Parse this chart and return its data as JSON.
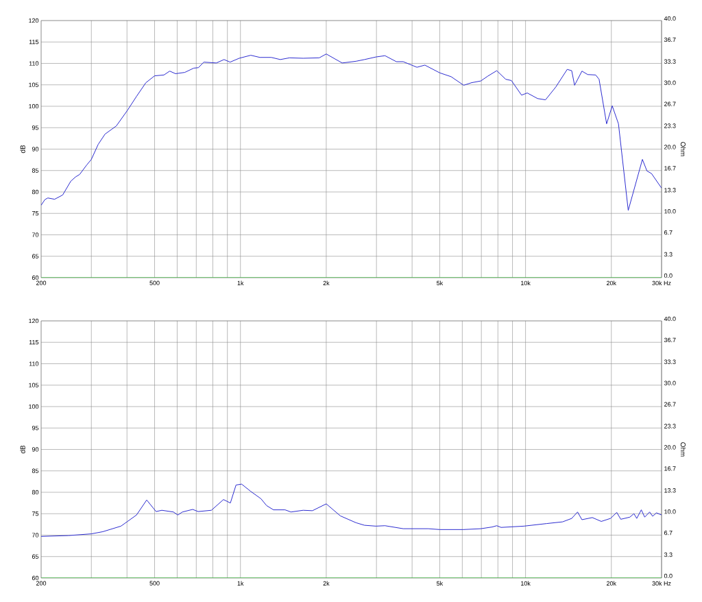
{
  "chart_data": [
    {
      "type": "line",
      "log": "x",
      "grid": true,
      "ylabel": "dB",
      "y2label": "Ohm",
      "xlim": [
        200,
        30000
      ],
      "xticks": [
        {
          "value": 200,
          "label": "200"
        },
        {
          "value": 300,
          "label": null
        },
        {
          "value": 400,
          "label": null
        },
        {
          "value": 500,
          "label": "500"
        },
        {
          "value": 600,
          "label": null
        },
        {
          "value": 700,
          "label": null
        },
        {
          "value": 800,
          "label": null
        },
        {
          "value": 900,
          "label": null
        },
        {
          "value": 1000,
          "label": "1k"
        },
        {
          "value": 2000,
          "label": "2k"
        },
        {
          "value": 3000,
          "label": null
        },
        {
          "value": 4000,
          "label": null
        },
        {
          "value": 5000,
          "label": "5k"
        },
        {
          "value": 6000,
          "label": null
        },
        {
          "value": 7000,
          "label": null
        },
        {
          "value": 8000,
          "label": null
        },
        {
          "value": 9000,
          "label": null
        },
        {
          "value": 10000,
          "label": "10k"
        },
        {
          "value": 20000,
          "label": "20k"
        },
        {
          "value": 30000,
          "label": "30k Hz"
        }
      ],
      "ylim": [
        60,
        120
      ],
      "yticks": [
        60,
        65,
        70,
        75,
        80,
        85,
        90,
        95,
        100,
        105,
        110,
        115,
        120
      ],
      "y2lim": [
        0,
        40
      ],
      "y2ticks": [
        {
          "value": 0,
          "label": "0.0"
        },
        {
          "value": 3.3,
          "label": "3.3"
        },
        {
          "value": 6.7,
          "label": "6.7"
        },
        {
          "value": 10,
          "label": "10.0"
        },
        {
          "value": 13.3,
          "label": "13.3"
        },
        {
          "value": 16.7,
          "label": "16.7"
        },
        {
          "value": 20,
          "label": "20.0"
        },
        {
          "value": 23.3,
          "label": "23.3"
        },
        {
          "value": 26.7,
          "label": "26.7"
        },
        {
          "value": 30,
          "label": "30.0"
        },
        {
          "value": 33.3,
          "label": "33.3"
        },
        {
          "value": 36.7,
          "label": "36.7"
        },
        {
          "value": 40,
          "label": "40.0"
        }
      ],
      "series": [
        {
          "color": "#2b2bd0",
          "x": [
            200,
            206,
            211,
            223,
            238,
            254,
            264,
            273,
            289,
            300,
            317,
            335,
            367,
            402,
            432,
            466,
            500,
            539,
            565,
            592,
            638,
            686,
            712,
            744,
            823,
            876,
            920,
            990,
            1087,
            1170,
            1283,
            1380,
            1486,
            1660,
            1890,
            2000,
            2274,
            2542,
            2723,
            2986,
            3214,
            3524,
            3724,
            4160,
            4436,
            5000,
            5483,
            6068,
            6471,
            6967,
            7362,
            7925,
            8520,
            8921,
            9683,
            10140,
            11020,
            11750,
            12770,
            14000,
            14520,
            14860,
            15770,
            16520,
            17620,
            18110,
            19250,
            20140,
            21180,
            22920,
            25700,
            26660,
            27660,
            30000
          ],
          "values": [
            76.9,
            78.2,
            78.6,
            78.3,
            79.3,
            82.5,
            83.5,
            84.1,
            86.3,
            87.6,
            91.1,
            93.5,
            95.4,
            99.1,
            102.3,
            105.5,
            107.1,
            107.3,
            108.2,
            107.6,
            107.9,
            108.9,
            109.0,
            110.3,
            110.1,
            110.9,
            110.3,
            111.2,
            111.9,
            111.4,
            111.4,
            110.9,
            111.3,
            111.2,
            111.3,
            112.2,
            110.1,
            110.5,
            110.9,
            111.5,
            111.8,
            110.4,
            110.4,
            109.1,
            109.6,
            107.8,
            106.9,
            104.9,
            105.5,
            105.9,
            107.0,
            108.3,
            106.3,
            106.0,
            102.6,
            103.1,
            101.8,
            101.5,
            104.5,
            108.6,
            108.3,
            104.9,
            108.2,
            107.4,
            107.3,
            106.3,
            95.9,
            100.1,
            95.9,
            75.7,
            87.6,
            84.9,
            84.3,
            80.9
          ]
        },
        {
          "color": "#33cc33",
          "axis": "y2",
          "x": [
            200,
            30000
          ],
          "values": [
            0,
            0
          ]
        }
      ]
    },
    {
      "type": "line",
      "log": "x",
      "grid": true,
      "ylabel": "dB",
      "y2label": "Ohm",
      "xlim": [
        200,
        30000
      ],
      "xticks": [
        {
          "value": 200,
          "label": "200"
        },
        {
          "value": 300,
          "label": null
        },
        {
          "value": 400,
          "label": null
        },
        {
          "value": 500,
          "label": "500"
        },
        {
          "value": 600,
          "label": null
        },
        {
          "value": 700,
          "label": null
        },
        {
          "value": 800,
          "label": null
        },
        {
          "value": 900,
          "label": null
        },
        {
          "value": 1000,
          "label": "1k"
        },
        {
          "value": 2000,
          "label": "2k"
        },
        {
          "value": 3000,
          "label": null
        },
        {
          "value": 4000,
          "label": null
        },
        {
          "value": 5000,
          "label": "5k"
        },
        {
          "value": 6000,
          "label": null
        },
        {
          "value": 7000,
          "label": null
        },
        {
          "value": 8000,
          "label": null
        },
        {
          "value": 9000,
          "label": null
        },
        {
          "value": 10000,
          "label": "10k"
        },
        {
          "value": 20000,
          "label": "20k"
        },
        {
          "value": 30000,
          "label": "30k Hz"
        }
      ],
      "ylim": [
        60,
        120
      ],
      "yticks": [
        60,
        65,
        70,
        75,
        80,
        85,
        90,
        95,
        100,
        105,
        110,
        115,
        120
      ],
      "y2lim": [
        0,
        40
      ],
      "y2ticks": [
        {
          "value": 0,
          "label": "0.0"
        },
        {
          "value": 3.3,
          "label": "3.3"
        },
        {
          "value": 6.7,
          "label": "6.7"
        },
        {
          "value": 10,
          "label": "10.0"
        },
        {
          "value": 13.3,
          "label": "13.3"
        },
        {
          "value": 16.7,
          "label": "16.7"
        },
        {
          "value": 20,
          "label": "20.0"
        },
        {
          "value": 23.3,
          "label": "23.3"
        },
        {
          "value": 26.7,
          "label": "26.7"
        },
        {
          "value": 30,
          "label": "30.0"
        },
        {
          "value": 33.3,
          "label": "33.3"
        },
        {
          "value": 36.7,
          "label": "36.7"
        },
        {
          "value": 40,
          "label": "40.0"
        }
      ],
      "series": [
        {
          "color": "#2b2bd0",
          "x": [
            200,
            249,
            300,
            329,
            381,
            432,
            469,
            506,
            530,
            582,
            603,
            626,
            680,
            711,
            791,
            872,
            922,
            965,
            1010,
            1087,
            1180,
            1235,
            1306,
            1434,
            1503,
            1660,
            1788,
            2000,
            2240,
            2542,
            2723,
            2986,
            3214,
            3724,
            4560,
            5000,
            6050,
            6967,
            7640,
            7925,
            8210,
            9866,
            11860,
            13490,
            14520,
            15220,
            15770,
            17150,
            18440,
            19860,
            20890,
            21580,
            23220,
            24000,
            24550,
            25470,
            26180,
            27240,
            27920,
            28780,
            30000
          ],
          "values": [
            69.7,
            69.9,
            70.3,
            70.8,
            72.1,
            74.7,
            78.2,
            75.5,
            75.8,
            75.4,
            74.7,
            75.4,
            76.0,
            75.5,
            75.8,
            78.3,
            77.5,
            81.7,
            81.9,
            80.2,
            78.5,
            76.9,
            75.9,
            75.9,
            75.4,
            75.8,
            75.7,
            77.3,
            74.5,
            72.9,
            72.3,
            72.1,
            72.2,
            71.5,
            71.5,
            71.3,
            71.3,
            71.5,
            71.9,
            72.2,
            71.8,
            72.1,
            72.7,
            73.1,
            73.9,
            75.4,
            73.6,
            74.1,
            73.2,
            73.9,
            75.3,
            73.7,
            74.2,
            75.0,
            73.9,
            75.9,
            74.2,
            75.4,
            74.4,
            75.2,
            74.7
          ]
        },
        {
          "color": "#33cc33",
          "axis": "y2",
          "x": [
            200,
            30000
          ],
          "values": [
            0,
            0
          ]
        }
      ]
    }
  ]
}
